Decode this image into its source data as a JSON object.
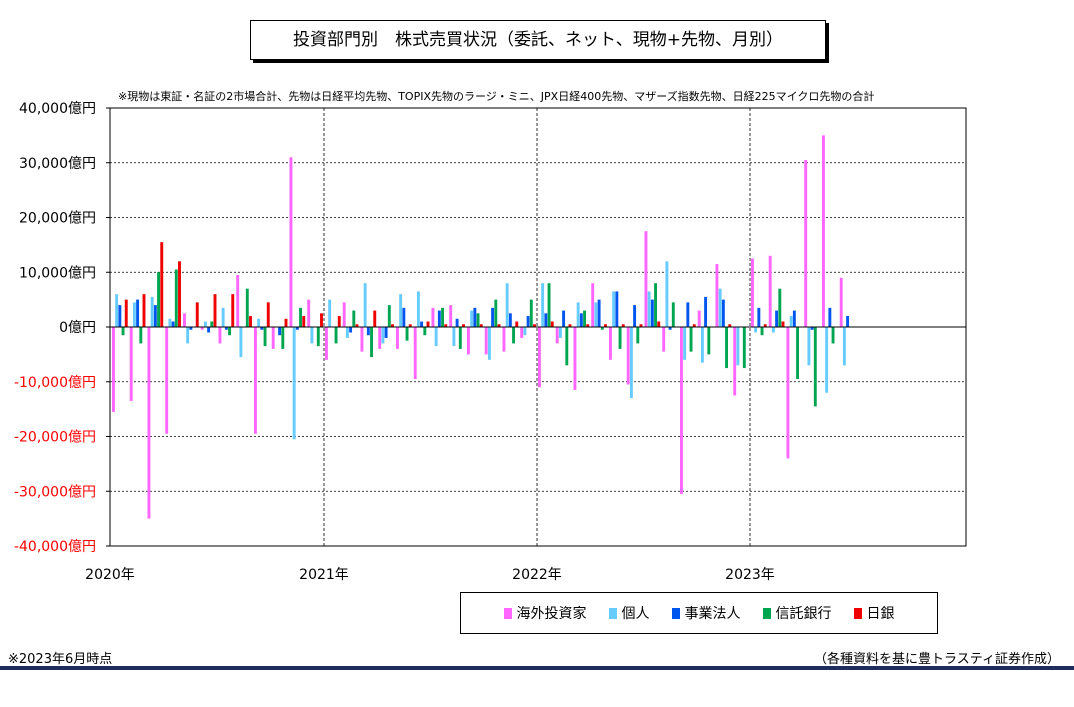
{
  "title": "投資部門別　株式売買状況（委託、ネット、現物+先物、月別）",
  "note": "※現物は東証・名証の2市場合計、先物は日経平均先物、TOPIX先物のラージ・ミニ、JPX日経400先物、マザーズ指数先物、日経225マイクロ先物の合計",
  "footnote": "※2023年6月時点",
  "source": "（各種資料を基に豊トラスティ証券作成）",
  "chart_data": {
    "type": "bar",
    "unit_suffix": "億円",
    "ylim": [
      -40000,
      40000
    ],
    "yticks": [
      40000,
      30000,
      20000,
      10000,
      0,
      -10000,
      -20000,
      -30000,
      -40000
    ],
    "ytick_labels": [
      "40,000億円",
      "30,000億円",
      "20,000億円",
      "10,000億円",
      "0億円",
      "-10,000億円",
      "-20,000億円",
      "-30,000億円",
      "-40,000億円"
    ],
    "xtick_labels": [
      "2020年",
      "2021年",
      "2022年",
      "2023年"
    ],
    "grid": "dashed-vertical-at-years, dotted-horizontal",
    "legend_position": "bottom-right",
    "categories": [
      "2020-01",
      "2020-02",
      "2020-03",
      "2020-04",
      "2020-05",
      "2020-06",
      "2020-07",
      "2020-08",
      "2020-09",
      "2020-10",
      "2020-11",
      "2020-12",
      "2021-01",
      "2021-02",
      "2021-03",
      "2021-04",
      "2021-05",
      "2021-06",
      "2021-07",
      "2021-08",
      "2021-09",
      "2021-10",
      "2021-11",
      "2021-12",
      "2022-01",
      "2022-02",
      "2022-03",
      "2022-04",
      "2022-05",
      "2022-06",
      "2022-07",
      "2022-08",
      "2022-09",
      "2022-10",
      "2022-11",
      "2022-12",
      "2023-01",
      "2023-02",
      "2023-03",
      "2023-04",
      "2023-05",
      "2023-06"
    ],
    "series": [
      {
        "name": "海外投資家",
        "color": "#ff66ff",
        "values": [
          -15500,
          -13500,
          -35000,
          -19500,
          2500,
          -500,
          -3000,
          9500,
          -19500,
          -4000,
          31000,
          5000,
          -6000,
          4500,
          -4500,
          -4000,
          -4000,
          -9500,
          3500,
          4000,
          -5000,
          -5000,
          -4500,
          -2000,
          -11000,
          -3000,
          -11500,
          8000,
          -6000,
          -10500,
          17500,
          -4500,
          -30500,
          3000,
          11500,
          -12500,
          12500,
          13000,
          -24000,
          30500,
          35000,
          9000
        ]
      },
      {
        "name": "個人",
        "color": "#66ccff",
        "values": [
          6000,
          4500,
          5500,
          1500,
          -3000,
          1000,
          3500,
          -5500,
          1500,
          0,
          -20500,
          -3000,
          5000,
          -2000,
          8000,
          -3000,
          6000,
          6500,
          -3500,
          -3500,
          3000,
          -6000,
          8000,
          -1500,
          8000,
          -2000,
          4500,
          4500,
          6500,
          -13000,
          6500,
          12000,
          -6000,
          -6500,
          7000,
          -7000,
          -1000,
          -1000,
          2000,
          -7000,
          -12000,
          -7000
        ]
      },
      {
        "name": "事業法人",
        "color": "#0055ee",
        "values": [
          4000,
          5000,
          4000,
          1000,
          -500,
          -1000,
          -500,
          0,
          -500,
          -1500,
          -500,
          0,
          0,
          -1000,
          -1500,
          -2000,
          3500,
          1000,
          3000,
          1500,
          3500,
          3500,
          2500,
          2000,
          2500,
          3000,
          2500,
          5000,
          6500,
          4000,
          5000,
          -500,
          4500,
          5500,
          5000,
          0,
          3500,
          3000,
          3000,
          -500,
          3500,
          2000
        ]
      },
      {
        "name": "信託銀行",
        "color": "#00a550",
        "values": [
          -1500,
          -3000,
          10000,
          10500,
          0,
          1000,
          -1500,
          7000,
          -3500,
          -4000,
          3500,
          -3500,
          -3000,
          3000,
          -5500,
          4000,
          -2500,
          -1500,
          3500,
          -4000,
          2500,
          5000,
          -3000,
          5000,
          8000,
          -7000,
          3000,
          -500,
          -4000,
          -3000,
          8000,
          4500,
          -4500,
          -5000,
          -7500,
          -7500,
          -1500,
          7000,
          -9500,
          -14500,
          -3000,
          0
        ]
      },
      {
        "name": "日銀",
        "color": "#ee0000",
        "values": [
          5000,
          6000,
          15500,
          12000,
          4500,
          6000,
          6000,
          2000,
          4500,
          1500,
          2000,
          2500,
          2000,
          500,
          3000,
          500,
          500,
          1000,
          500,
          500,
          500,
          500,
          1000,
          500,
          1000,
          500,
          500,
          500,
          500,
          500,
          1000,
          0,
          500,
          0,
          500,
          0,
          500,
          1000,
          0,
          0,
          0,
          0
        ]
      }
    ]
  },
  "legend": [
    {
      "name": "海外投資家",
      "color": "#ff66ff"
    },
    {
      "name": "個人",
      "color": "#66ccff"
    },
    {
      "name": "事業法人",
      "color": "#0055ee"
    },
    {
      "name": "信託銀行",
      "color": "#00a550"
    },
    {
      "name": "日銀",
      "color": "#ee0000"
    }
  ]
}
